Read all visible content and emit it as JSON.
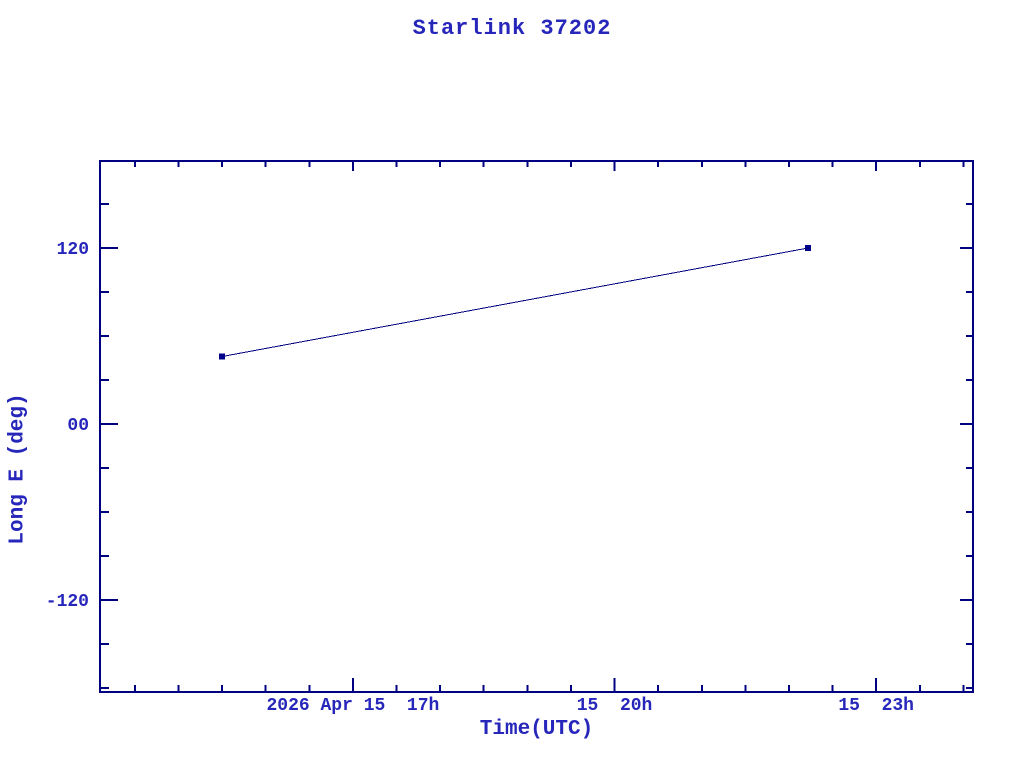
{
  "window": {
    "background": "#ffffff"
  },
  "colors": {
    "frame": "#000080",
    "series_line": "#000080",
    "marker": "#00008b",
    "label_text": "#2626bb"
  },
  "chart_data": {
    "type": "line",
    "title": "Starlink 37202",
    "xlabel": "Time(UTC)",
    "ylabel": "Long E (deg)",
    "x_unit": "hours UTC on 2026 Apr 15",
    "xlim": [
      14.1,
      24.11
    ],
    "ylim": [
      -182.7,
      179.3
    ],
    "x_major_ticks": [
      17,
      20,
      23
    ],
    "x_major_labels": [
      "2026 Apr 15  17h",
      "15  20h",
      "15  23h"
    ],
    "x_minor_step": 0.5,
    "y_major_ticks": [
      120,
      0,
      -120
    ],
    "y_major_labels": [
      "120",
      "00",
      "-120"
    ],
    "y_minor_step": 30,
    "grid": false,
    "legend": "none",
    "series": [
      {
        "name": "Starlink 37202 longitude track",
        "marker": "square",
        "x_hours": [
          15.5,
          22.22
        ],
        "x_times": [
          "2026 Apr 15 15:30",
          "2026 Apr 15 22:13"
        ],
        "y_deg": [
          46,
          120
        ]
      }
    ]
  }
}
